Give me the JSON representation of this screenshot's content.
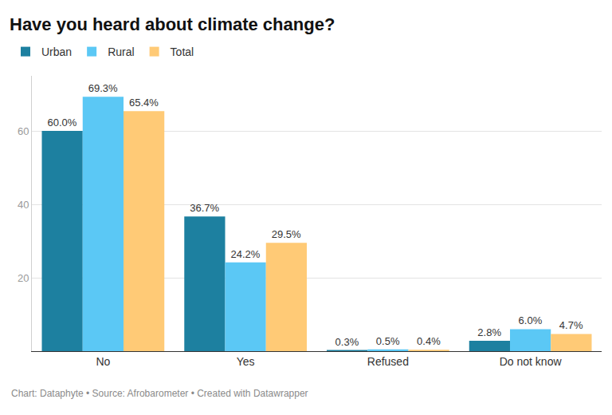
{
  "chart_data": {
    "type": "bar",
    "title": "Have you heard about climate change?",
    "categories": [
      "No",
      "Yes",
      "Refused",
      "Do not know"
    ],
    "series": [
      {
        "name": "Urban",
        "color": "#1d80a0",
        "values": [
          60.0,
          36.7,
          0.3,
          2.8
        ],
        "value_labels": [
          "60.0%",
          "36.7%",
          "0.3%",
          "2.8%"
        ]
      },
      {
        "name": "Rural",
        "color": "#5bc8f5",
        "values": [
          69.3,
          24.2,
          0.5,
          6.0
        ],
        "value_labels": [
          "69.3%",
          "24.2%",
          "0.5%",
          "6.0%"
        ]
      },
      {
        "name": "Total",
        "color": "#ffca76",
        "values": [
          65.4,
          29.5,
          0.4,
          4.7
        ],
        "value_labels": [
          "65.4%",
          "29.5%",
          "0.4%",
          "4.7%"
        ]
      }
    ],
    "ylim": [
      0,
      75
    ],
    "yticks": [
      20,
      40,
      60
    ],
    "grid": true,
    "legend": "top-left",
    "data_labels": true,
    "note": "Chart: Dataphyte • Source: Afrobarometer • Created with Datawrapper"
  }
}
